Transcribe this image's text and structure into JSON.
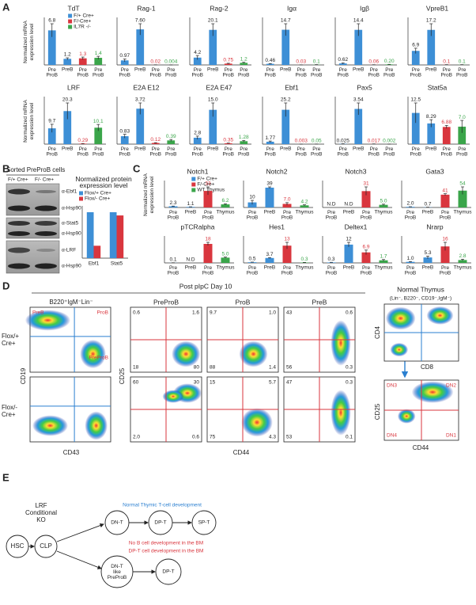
{
  "panel_A": {
    "letter": "A"
  },
  "panel_B": {
    "letter": "B",
    "title": "Sorted PreProB cells",
    "lanes": [
      "F/+ Cre+",
      "F/- Cre+"
    ],
    "antibodies": [
      "α-Ebf1",
      "α-Hsp90",
      "α-Stat5",
      "α-Hsp90",
      "α-LRF",
      "α-Hsp90"
    ]
  },
  "panel_C": {
    "letter": "C"
  },
  "chart_data": [
    {
      "type": "bar",
      "title": "TdT",
      "ylabel": "Normalized mRNA expression level",
      "legend": [
        {
          "name": "F/+ Cre+",
          "color": "#3d8fd6"
        },
        {
          "name": "F/-Cre+",
          "color": "#d9363e"
        },
        {
          "name": "IL7R -/-",
          "color": "#3aa54a"
        }
      ],
      "categories": [
        "Pre ProB",
        "PreB",
        "Pre ProB",
        "Pre ProB"
      ],
      "values": [
        6.8,
        1.2,
        1.3,
        1.4
      ],
      "value_labels": [
        "6.8",
        "1.2",
        "1.3",
        "1.4"
      ],
      "errors": [
        1.3,
        0.2,
        0.25,
        0.3
      ],
      "colors": [
        "#3d8fd6",
        "#3d8fd6",
        "#d9363e",
        "#3aa54a"
      ]
    },
    {
      "type": "bar",
      "title": "Rag-1",
      "categories": [
        "Pre ProB",
        "PreB",
        "Pre ProB",
        "Pre ProB"
      ],
      "values": [
        0.97,
        7.6,
        0.02,
        0.004
      ],
      "value_labels": [
        "0.97",
        "7.60",
        "0.02",
        "0.004"
      ],
      "errors": [
        0.3,
        1.2,
        0.01,
        0.002
      ],
      "colors": [
        "#3d8fd6",
        "#3d8fd6",
        "#d9363e",
        "#3aa54a"
      ]
    },
    {
      "type": "bar",
      "title": "Rag-2",
      "categories": [
        "Pre ProB",
        "PreB",
        "Pre ProB",
        "Pre ProB"
      ],
      "values": [
        4.2,
        20.1,
        0.75,
        1.2
      ],
      "value_labels": [
        "4.2",
        "20.1",
        "0.75",
        "1.2"
      ],
      "errors": [
        1.2,
        3.5,
        0.2,
        0.3
      ],
      "colors": [
        "#3d8fd6",
        "#3d8fd6",
        "#d9363e",
        "#3aa54a"
      ]
    },
    {
      "type": "bar",
      "title": "Igα",
      "categories": [
        "Pre ProB",
        "PreB",
        "Pre ProB",
        "Pre ProB"
      ],
      "values": [
        0.46,
        14.7,
        0.03,
        0.1
      ],
      "value_labels": [
        "0.46",
        "14.7",
        "0.03",
        "0.1"
      ],
      "errors": [
        0.1,
        2.5,
        0.01,
        0.03
      ],
      "colors": [
        "#3d8fd6",
        "#3d8fd6",
        "#d9363e",
        "#3aa54a"
      ]
    },
    {
      "type": "bar",
      "title": "Igβ",
      "categories": [
        "Pre ProB",
        "PreB",
        "Pre ProB",
        "Pre ProB"
      ],
      "values": [
        0.62,
        14.4,
        0.06,
        0.2
      ],
      "value_labels": [
        "0.62",
        "14.4",
        "0.06",
        "0.20"
      ],
      "errors": [
        0.2,
        2.5,
        0.02,
        0.05
      ],
      "colors": [
        "#3d8fd6",
        "#3d8fd6",
        "#d9363e",
        "#3aa54a"
      ]
    },
    {
      "type": "bar",
      "title": "VpreB1",
      "categories": [
        "Pre ProB",
        "PreB",
        "Pre ProB",
        "Pre ProB"
      ],
      "values": [
        6.9,
        17.2,
        0.1,
        0.1
      ],
      "value_labels": [
        "6.9",
        "17.2",
        "0.1",
        "0.1"
      ],
      "errors": [
        1.3,
        3,
        0.03,
        0.03
      ],
      "colors": [
        "#3d8fd6",
        "#3d8fd6",
        "#d9363e",
        "#3aa54a"
      ]
    },
    {
      "type": "bar",
      "title": "LRF",
      "ylabel": "Normalized mRNA expression level",
      "categories": [
        "Pre ProB",
        "PreB",
        "Pre ProB",
        "Pre ProB"
      ],
      "values": [
        9.7,
        20.3,
        0.29,
        10.1
      ],
      "value_labels": [
        "9.7",
        "20.3",
        "0.29",
        "10.1"
      ],
      "errors": [
        2.5,
        5,
        0.1,
        2
      ],
      "colors": [
        "#3d8fd6",
        "#3d8fd6",
        "#d9363e",
        "#3aa54a"
      ]
    },
    {
      "type": "bar",
      "title": "E2A E12",
      "categories": [
        "Pre ProB",
        "PreB",
        "Pre ProB",
        "Pre ProB"
      ],
      "values": [
        0.83,
        3.72,
        0.12,
        0.39
      ],
      "value_labels": [
        "0.83",
        "3.72",
        "0.12",
        "0.39"
      ],
      "errors": [
        0.2,
        0.6,
        0.03,
        0.1
      ],
      "colors": [
        "#3d8fd6",
        "#3d8fd6",
        "#d9363e",
        "#3aa54a"
      ]
    },
    {
      "type": "bar",
      "title": "E2A E47",
      "categories": [
        "Pre ProB",
        "PreB",
        "Pre ProB",
        "Pre ProB"
      ],
      "values": [
        2.8,
        15.0,
        0.35,
        1.28
      ],
      "value_labels": [
        "2.8",
        "15.0",
        "0.35",
        "1.28"
      ],
      "errors": [
        0.7,
        3,
        0.1,
        0.3
      ],
      "colors": [
        "#3d8fd6",
        "#3d8fd6",
        "#d9363e",
        "#3aa54a"
      ]
    },
    {
      "type": "bar",
      "title": "Ebf1",
      "categories": [
        "Pre ProB",
        "PreB",
        "Pre ProB",
        "Pre ProB"
      ],
      "values": [
        1.77,
        25.2,
        0.003,
        0.05
      ],
      "value_labels": [
        "1.77",
        "25.2",
        "0.003",
        "0.05"
      ],
      "errors": [
        0.5,
        5,
        0.001,
        0.02
      ],
      "colors": [
        "#3d8fd6",
        "#3d8fd6",
        "#d9363e",
        "#3aa54a"
      ]
    },
    {
      "type": "bar",
      "title": "Pax5",
      "categories": [
        "Pre ProB",
        "PreB",
        "Pre ProB",
        "Pre ProB"
      ],
      "values": [
        0.025,
        3.54,
        0.017,
        0.002
      ],
      "value_labels": [
        "0.025",
        "3.54",
        "0.017",
        "0.002"
      ],
      "errors": [
        0.01,
        0.6,
        0.005,
        0.001
      ],
      "colors": [
        "#3d8fd6",
        "#3d8fd6",
        "#d9363e",
        "#3aa54a"
      ]
    },
    {
      "type": "bar",
      "title": "Stat5a",
      "categories": [
        "Pre ProB",
        "PreB",
        "Pre ProB",
        "Pre ProB"
      ],
      "values": [
        12.5,
        8.29,
        6.88,
        7.0
      ],
      "value_labels": [
        "12.5",
        "8.29",
        "6.88",
        "7.0"
      ],
      "errors": [
        4,
        1.5,
        0.6,
        2.5
      ],
      "colors": [
        "#3d8fd6",
        "#3d8fd6",
        "#d9363e",
        "#3aa54a"
      ]
    },
    {
      "type": "bar",
      "title": "Normalized protein expression level",
      "categories": [
        "Ebf1",
        "Stat5"
      ],
      "series": [
        {
          "name": "Flox/+ Cre+",
          "color": "#3d8fd6",
          "values": [
            1.0,
            1.0
          ]
        },
        {
          "name": "Flox/- Cre+",
          "color": "#d9363e",
          "values": [
            0.27,
            0.93
          ]
        }
      ]
    },
    {
      "type": "bar",
      "title": "Notch1",
      "ylabel": "Normalized mRNA expression level",
      "legend": [
        {
          "name": "F/+ Cre+",
          "color": "#3d8fd6"
        },
        {
          "name": "F/-Cre+",
          "color": "#d9363e"
        },
        {
          "name": "WT Thymus",
          "color": "#3aa54a"
        }
      ],
      "categories": [
        "Pre ProB",
        "PreB",
        "Pre ProB",
        "Thymus"
      ],
      "values": [
        2.3,
        1.1,
        33,
        6.2
      ],
      "value_labels": [
        "2.3",
        "1.1",
        "33",
        "6.2"
      ],
      "errors": [
        0.5,
        0.3,
        8,
        1
      ],
      "colors": [
        "#3d8fd6",
        "#3d8fd6",
        "#d9363e",
        "#3aa54a"
      ]
    },
    {
      "type": "bar",
      "title": "Notch2",
      "categories": [
        "Pre ProB",
        "PreB",
        "Pre ProB",
        "Thymus"
      ],
      "values": [
        10,
        39,
        7.0,
        4.2
      ],
      "value_labels": [
        "10",
        "39",
        "7.0",
        "4.2"
      ],
      "errors": [
        4,
        1.5,
        2.5,
        1
      ],
      "colors": [
        "#3d8fd6",
        "#3d8fd6",
        "#d9363e",
        "#3aa54a"
      ]
    },
    {
      "type": "bar",
      "title": "Notch3",
      "categories": [
        "Pre ProB",
        "PreB",
        "Pre ProB",
        "Thymus"
      ],
      "values": [
        null,
        null,
        31,
        5.0
      ],
      "value_labels": [
        "N.D",
        "N.D",
        "31",
        "5.0"
      ],
      "errors": [
        null,
        null,
        8,
        1.2
      ],
      "colors": [
        "#3d8fd6",
        "#3d8fd6",
        "#d9363e",
        "#3aa54a"
      ]
    },
    {
      "type": "bar",
      "title": "Gata3",
      "categories": [
        "Pre ProB",
        "PreB",
        "Pre ProB",
        "Thymus"
      ],
      "values": [
        2.0,
        0.7,
        41,
        54
      ],
      "value_labels": [
        "2.0",
        "0.7",
        "41",
        "54"
      ],
      "errors": [
        0.5,
        0.2,
        3,
        12
      ],
      "colors": [
        "#3d8fd6",
        "#3d8fd6",
        "#d9363e",
        "#3aa54a"
      ]
    },
    {
      "type": "bar",
      "title": "pTCRalpha",
      "categories": [
        "Pre ProB",
        "PreB",
        "Pre ProB",
        "Thymus"
      ],
      "values": [
        0.1,
        null,
        18,
        5.0
      ],
      "value_labels": [
        "0.1",
        "N.D",
        "18",
        "5.0"
      ],
      "errors": [
        0.05,
        null,
        1.5,
        0.5
      ],
      "colors": [
        "#3d8fd6",
        "#3d8fd6",
        "#d9363e",
        "#3aa54a"
      ]
    },
    {
      "type": "bar",
      "title": "Hes1",
      "categories": [
        "Pre ProB",
        "PreB",
        "Pre ProB",
        "Thymus"
      ],
      "values": [
        0.5,
        3.7,
        13,
        0.3
      ],
      "value_labels": [
        "0.5",
        "3.7",
        "13",
        "0.3"
      ],
      "errors": [
        0.1,
        0.3,
        2.5,
        0.1
      ],
      "colors": [
        "#3d8fd6",
        "#3d8fd6",
        "#d9363e",
        "#3aa54a"
      ]
    },
    {
      "type": "bar",
      "title": "Deltex1",
      "categories": [
        "Pre ProB",
        "PreB",
        "Pre ProB",
        "Thymus"
      ],
      "values": [
        0.3,
        12,
        6.9,
        1.7
      ],
      "value_labels": [
        "0.3",
        "12",
        "6.9",
        "1.7"
      ],
      "errors": [
        0.1,
        1.5,
        1.5,
        0.5
      ],
      "colors": [
        "#3d8fd6",
        "#3d8fd6",
        "#d9363e",
        "#3aa54a"
      ]
    },
    {
      "type": "bar",
      "title": "Nrarp",
      "categories": [
        "Pre ProB",
        "PreB",
        "Pre ProB",
        "Thymus"
      ],
      "values": [
        1.0,
        5.3,
        16,
        2.8
      ],
      "value_labels": [
        "1.0",
        "5.3",
        "16",
        "2.8"
      ],
      "errors": [
        0.3,
        1.3,
        4,
        0.8
      ],
      "colors": [
        "#3d8fd6",
        "#3d8fd6",
        "#d9363e",
        "#3aa54a"
      ]
    }
  ],
  "panel_D": {
    "letter": "D",
    "title": "Post pIpC Day 10",
    "gate_title": "B220⁺IgM⁻Lin⁻",
    "gate_labels": [
      "PreB",
      "ProB",
      "PreProB"
    ],
    "row_labels": [
      "Flox/+ Cre+",
      "Flox/- Cre+"
    ],
    "left_axes": [
      "CD19",
      "CD43"
    ],
    "populations": [
      "PreProB",
      "ProB",
      "PreB"
    ],
    "pop_axes": [
      "CD25",
      "CD44"
    ],
    "quadrants": [
      [
        [
          "0.6",
          "1.6",
          "18",
          "80"
        ],
        [
          "9.7",
          "1.0",
          "88",
          "1.4"
        ],
        [
          "43",
          "0.6",
          "56",
          "0.3"
        ]
      ],
      [
        [
          "60",
          "30",
          "2.0",
          "0.6"
        ],
        [
          "15",
          "5.7",
          "75",
          "4.3"
        ],
        [
          "47",
          "0.3",
          "53",
          "0.1"
        ]
      ]
    ],
    "thymus": {
      "title": "Normal Thymus",
      "subtitle": "(Lin⁻, B220⁻, CD19⁻,IgM⁻)",
      "top_axes": [
        "CD4",
        "CD8"
      ],
      "bottom_axes": [
        "CD25",
        "CD44"
      ],
      "quadrants": [
        "DN3",
        "DN2",
        "DN4",
        "DN1"
      ]
    }
  },
  "panel_E": {
    "letter": "E",
    "ko_label": "LRF Conditional KO",
    "nodes": [
      "HSC",
      "CLP",
      "DN-T",
      "DP-T",
      "SP-T",
      "DN-T like PreProB",
      "DP-T"
    ],
    "normal_label": "Normal Thymic T-cell development",
    "ko_notes": [
      "No B cell development in the BM",
      "DP-T cell development in the BM"
    ]
  }
}
